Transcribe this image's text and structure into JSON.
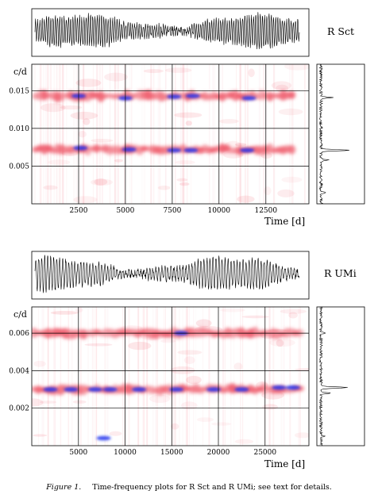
{
  "caption": {
    "label": "Figure 1.",
    "text": "Time-frequency plots for R Sct and R UMi; see text for details."
  },
  "colors": {
    "ridge_red": "#ee5566",
    "ridge_blue": "#2233ee",
    "curve": "#000000"
  },
  "chart_data": [
    {
      "star": "R Sct",
      "type": "heatmap",
      "panels": [
        "light-curve",
        "time-frequency",
        "power-spectrum"
      ],
      "xlabel": "Time [d]",
      "ylabel": "c/d",
      "xlim": [
        0,
        14800
      ],
      "ylim": [
        0,
        0.0185
      ],
      "x_ticks": [
        2500,
        5000,
        7500,
        10000,
        12500
      ],
      "x_tick_labels": [
        "2500",
        "5000",
        "7500",
        "10000",
        "12500"
      ],
      "y_ticks": [
        0.005,
        0.01,
        0.015
      ],
      "y_tick_labels": [
        "0.005",
        "0.010",
        "0.015"
      ],
      "grid": true,
      "ridges": [
        {
          "frequency": 0.0072,
          "color": "red",
          "x_range": [
            100,
            14000
          ]
        },
        {
          "frequency": 0.0143,
          "color": "red",
          "x_range": [
            100,
            14000
          ]
        }
      ],
      "blue_peaks": [
        {
          "x": 2600,
          "y": 0.0074
        },
        {
          "x": 5200,
          "y": 0.0072
        },
        {
          "x": 7600,
          "y": 0.0071
        },
        {
          "x": 8500,
          "y": 0.0071
        },
        {
          "x": 11500,
          "y": 0.0071
        },
        {
          "x": 2500,
          "y": 0.0143
        },
        {
          "x": 5000,
          "y": 0.014
        },
        {
          "x": 7600,
          "y": 0.0142
        },
        {
          "x": 8600,
          "y": 0.0143
        },
        {
          "x": 11600,
          "y": 0.014
        }
      ],
      "spectrum_peaks": [
        {
          "frequency": 0.0071,
          "power": 1.0
        },
        {
          "frequency": 0.0141,
          "power": 0.35
        },
        {
          "frequency": 0.0058,
          "power": 0.22
        },
        {
          "frequency": 0.0015,
          "power": 0.15
        }
      ]
    },
    {
      "star": "R UMi",
      "type": "heatmap",
      "panels": [
        "light-curve",
        "time-frequency",
        "power-spectrum"
      ],
      "xlabel": "Time [d]",
      "ylabel": "c/d",
      "xlim": [
        0,
        29700
      ],
      "ylim": [
        0,
        0.0074
      ],
      "x_ticks": [
        5000,
        10000,
        15000,
        20000,
        25000
      ],
      "x_tick_labels": [
        "5000",
        "10000",
        "15000",
        "20000",
        "25000"
      ],
      "y_ticks": [
        0.002,
        0.004,
        0.006
      ],
      "y_tick_labels": [
        "0.002",
        "0.004",
        "0.006"
      ],
      "grid": true,
      "ridges": [
        {
          "frequency": 0.003,
          "color": "red",
          "x_range": [
            0,
            29000
          ]
        },
        {
          "frequency": 0.006,
          "color": "red",
          "x_range": [
            0,
            29000
          ]
        }
      ],
      "blue_peaks": [
        {
          "x": 2000,
          "y": 0.003
        },
        {
          "x": 4200,
          "y": 0.003
        },
        {
          "x": 6800,
          "y": 0.003
        },
        {
          "x": 8400,
          "y": 0.003
        },
        {
          "x": 11500,
          "y": 0.003
        },
        {
          "x": 15500,
          "y": 0.003
        },
        {
          "x": 19500,
          "y": 0.003
        },
        {
          "x": 22500,
          "y": 0.003
        },
        {
          "x": 26500,
          "y": 0.0031
        },
        {
          "x": 28000,
          "y": 0.0031
        },
        {
          "x": 16000,
          "y": 0.006
        },
        {
          "x": 7700,
          "y": 0.0004
        }
      ],
      "spectrum_peaks": [
        {
          "frequency": 0.0031,
          "power": 1.0
        },
        {
          "frequency": 0.0028,
          "power": 0.3
        },
        {
          "frequency": 0.006,
          "power": 0.12
        },
        {
          "frequency": 0.0005,
          "power": 0.1
        }
      ]
    }
  ]
}
